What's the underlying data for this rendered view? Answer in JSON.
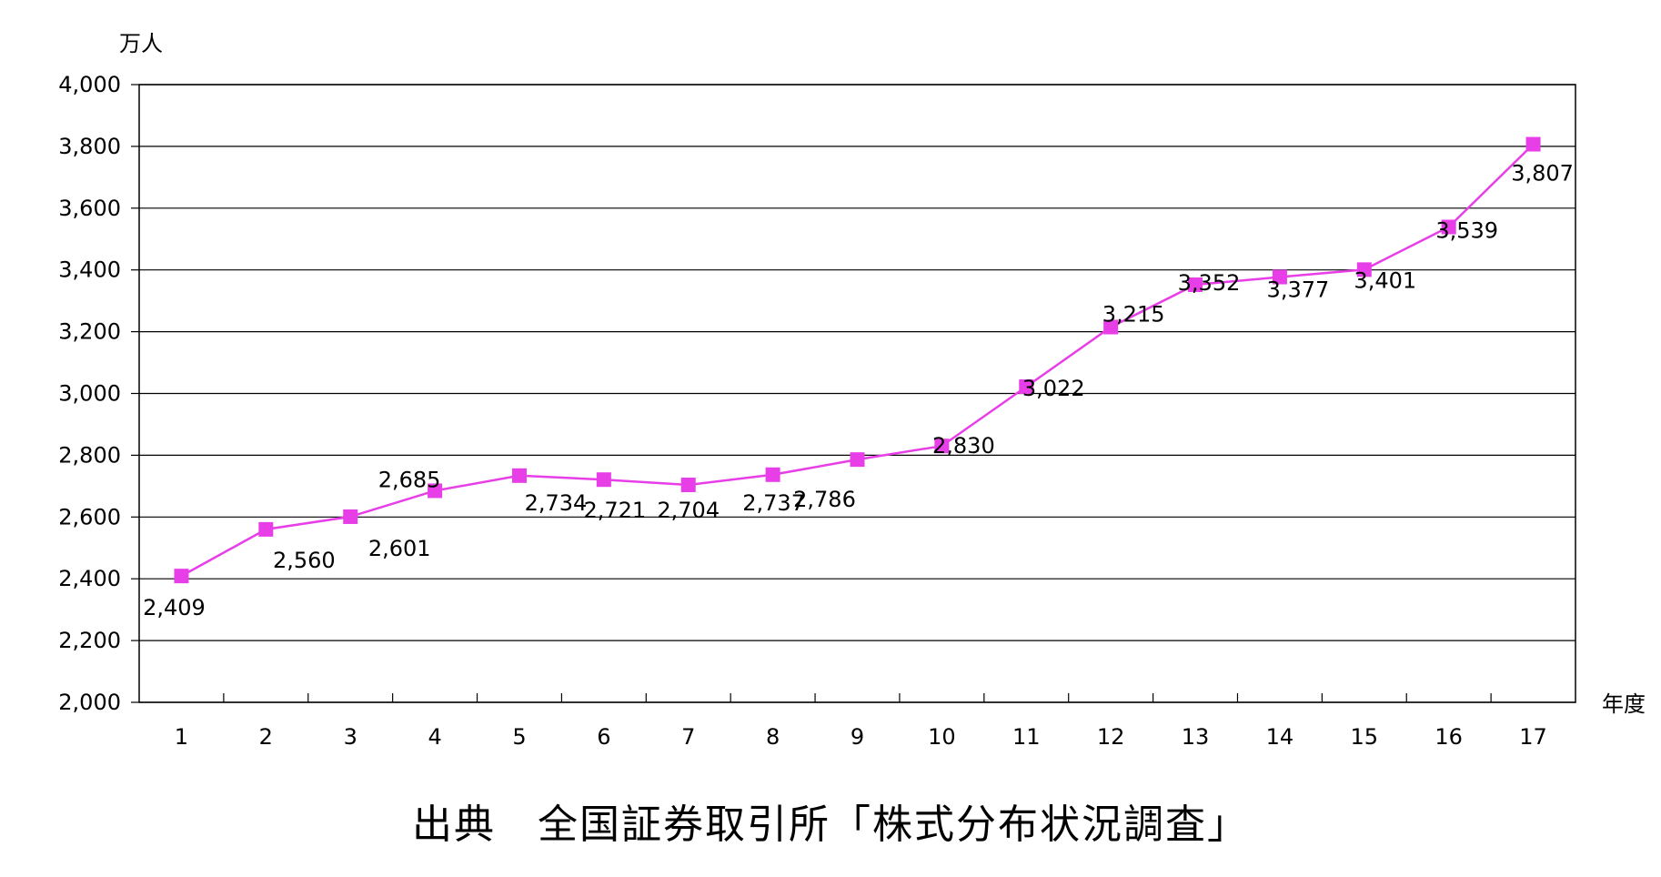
{
  "chart_data": {
    "type": "line",
    "y_unit_label": "万人",
    "x_unit_label": "年度",
    "categories": [
      "1",
      "2",
      "3",
      "4",
      "5",
      "6",
      "7",
      "8",
      "9",
      "10",
      "11",
      "12",
      "13",
      "14",
      "15",
      "16",
      "17"
    ],
    "series": [
      {
        "values": [
          2409,
          2560,
          2601,
          2685,
          2734,
          2721,
          2704,
          2737,
          2786,
          2830,
          3022,
          3215,
          3352,
          3377,
          3401,
          3539,
          3807
        ],
        "labels": [
          "2,409",
          "2,560",
          "2,601",
          "2,685",
          "2,734",
          "2,721",
          "2,704",
          "2,737",
          "2,786",
          "2,830",
          "3,022",
          "3,215",
          "3,352",
          "3,377",
          "3,401",
          "3,539",
          "3,807"
        ],
        "color": "#e83ee8"
      }
    ],
    "ylim": [
      2000,
      4000
    ],
    "yticks": [
      2000,
      2200,
      2400,
      2600,
      2800,
      3000,
      3200,
      3400,
      3600,
      3800,
      4000
    ],
    "ytick_labels": [
      "2,000",
      "2,200",
      "2,400",
      "2,600",
      "2,800",
      "3,000",
      "3,200",
      "3,400",
      "3,600",
      "3,800",
      "4,000"
    ],
    "grid": true,
    "gridline_color": "#000000"
  },
  "source_note": "出典　全国証券取引所「株式分布状況調査」"
}
